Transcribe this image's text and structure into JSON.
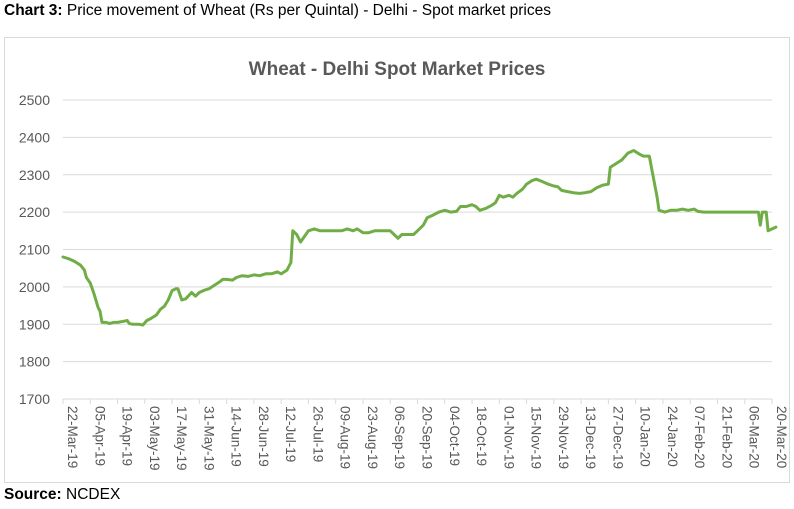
{
  "caption": {
    "label": "Chart 3:",
    "text": " Price movement of Wheat (Rs per Quintal) - Delhi - Spot market prices"
  },
  "source": {
    "label": "Source:",
    "text": " NCDEX"
  },
  "colors": {
    "line": "#70ad47",
    "grid": "#d9d9d9",
    "text": "#595959"
  },
  "chart_data": {
    "type": "line",
    "title": "Wheat - Delhi Spot Market Prices",
    "xlabel": "",
    "ylabel": "",
    "ylim": [
      1700,
      2500
    ],
    "yticks": [
      1700,
      1800,
      1900,
      2000,
      2100,
      2200,
      2300,
      2400,
      2500
    ],
    "grid": true,
    "legend": "none",
    "x_ticks": [
      "22-Mar-19",
      "05-Apr-19",
      "19-Apr-19",
      "03-May-19",
      "17-May-19",
      "31-May-19",
      "14-Jun-19",
      "28-Jun-19",
      "12-Jul-19",
      "26-Jul-19",
      "09-Aug-19",
      "23-Aug-19",
      "06-Sep-19",
      "20-Sep-19",
      "04-Oct-19",
      "18-Oct-19",
      "01-Nov-19",
      "15-Nov-19",
      "29-Nov-19",
      "13-Dec-19",
      "27-Dec-19",
      "10-Jan-20",
      "24-Jan-20",
      "07-Feb-20",
      "21-Feb-20",
      "06-Mar-20",
      "20-Mar-20"
    ],
    "series": [
      {
        "points": [
          [
            "22-Mar-19",
            2080
          ],
          [
            "25-Mar-19",
            2075
          ],
          [
            "28-Mar-19",
            2068
          ],
          [
            "31-Mar-19",
            2058
          ],
          [
            "02-Apr-19",
            2045
          ],
          [
            "03-Apr-19",
            2025
          ],
          [
            "05-Apr-19",
            2010
          ],
          [
            "07-Apr-19",
            1980
          ],
          [
            "09-Apr-19",
            1945
          ],
          [
            "10-Apr-19",
            1935
          ],
          [
            "11-Apr-19",
            1905
          ],
          [
            "13-Apr-19",
            1905
          ],
          [
            "15-Apr-19",
            1902
          ],
          [
            "17-Apr-19",
            1905
          ],
          [
            "19-Apr-19",
            1905
          ],
          [
            "22-Apr-19",
            1908
          ],
          [
            "24-Apr-19",
            1910
          ],
          [
            "25-Apr-19",
            1902
          ],
          [
            "27-Apr-19",
            1900
          ],
          [
            "30-Apr-19",
            1900
          ],
          [
            "02-May-19",
            1898
          ],
          [
            "04-May-19",
            1910
          ],
          [
            "06-May-19",
            1915
          ],
          [
            "09-May-19",
            1925
          ],
          [
            "11-May-19",
            1940
          ],
          [
            "13-May-19",
            1948
          ],
          [
            "15-May-19",
            1965
          ],
          [
            "17-May-19",
            1990
          ],
          [
            "19-May-19",
            1995
          ],
          [
            "20-May-19",
            1995
          ],
          [
            "22-May-19",
            1965
          ],
          [
            "24-May-19",
            1968
          ],
          [
            "27-May-19",
            1985
          ],
          [
            "29-May-19",
            1975
          ],
          [
            "31-May-19",
            1985
          ],
          [
            "03-Jun-19",
            1992
          ],
          [
            "05-Jun-19",
            1995
          ],
          [
            "07-Jun-19",
            2002
          ],
          [
            "10-Jun-19",
            2012
          ],
          [
            "12-Jun-19",
            2020
          ],
          [
            "14-Jun-19",
            2020
          ],
          [
            "17-Jun-19",
            2018
          ],
          [
            "19-Jun-19",
            2025
          ],
          [
            "22-Jun-19",
            2030
          ],
          [
            "25-Jun-19",
            2028
          ],
          [
            "28-Jun-19",
            2032
          ],
          [
            "01-Jul-19",
            2030
          ],
          [
            "04-Jul-19",
            2035
          ],
          [
            "07-Jul-19",
            2035
          ],
          [
            "10-Jul-19",
            2040
          ],
          [
            "12-Jul-19",
            2035
          ],
          [
            "15-Jul-19",
            2045
          ],
          [
            "17-Jul-19",
            2065
          ],
          [
            "18-Jul-19",
            2150
          ],
          [
            "20-Jul-19",
            2140
          ],
          [
            "22-Jul-19",
            2120
          ],
          [
            "24-Jul-19",
            2135
          ],
          [
            "26-Jul-19",
            2150
          ],
          [
            "29-Jul-19",
            2155
          ],
          [
            "01-Aug-19",
            2150
          ],
          [
            "04-Aug-19",
            2150
          ],
          [
            "07-Aug-19",
            2150
          ],
          [
            "09-Aug-19",
            2150
          ],
          [
            "12-Aug-19",
            2150
          ],
          [
            "15-Aug-19",
            2155
          ],
          [
            "18-Aug-19",
            2150
          ],
          [
            "20-Aug-19",
            2155
          ],
          [
            "23-Aug-19",
            2145
          ],
          [
            "26-Aug-19",
            2145
          ],
          [
            "29-Aug-19",
            2150
          ],
          [
            "01-Sep-19",
            2150
          ],
          [
            "04-Sep-19",
            2150
          ],
          [
            "06-Sep-19",
            2150
          ],
          [
            "08-Sep-19",
            2140
          ],
          [
            "10-Sep-19",
            2130
          ],
          [
            "12-Sep-19",
            2140
          ],
          [
            "15-Sep-19",
            2140
          ],
          [
            "18-Sep-19",
            2140
          ],
          [
            "20-Sep-19",
            2150
          ],
          [
            "23-Sep-19",
            2165
          ],
          [
            "25-Sep-19",
            2185
          ],
          [
            "28-Sep-19",
            2192
          ],
          [
            "01-Oct-19",
            2200
          ],
          [
            "04-Oct-19",
            2205
          ],
          [
            "07-Oct-19",
            2200
          ],
          [
            "10-Oct-19",
            2202
          ],
          [
            "12-Oct-19",
            2215
          ],
          [
            "15-Oct-19",
            2215
          ],
          [
            "18-Oct-19",
            2220
          ],
          [
            "20-Oct-19",
            2215
          ],
          [
            "22-Oct-19",
            2205
          ],
          [
            "25-Oct-19",
            2210
          ],
          [
            "28-Oct-19",
            2218
          ],
          [
            "30-Oct-19",
            2225
          ],
          [
            "01-Nov-19",
            2245
          ],
          [
            "03-Nov-19",
            2240
          ],
          [
            "06-Nov-19",
            2245
          ],
          [
            "08-Nov-19",
            2240
          ],
          [
            "10-Nov-19",
            2250
          ],
          [
            "13-Nov-19",
            2262
          ],
          [
            "15-Nov-19",
            2275
          ],
          [
            "18-Nov-19",
            2285
          ],
          [
            "20-Nov-19",
            2288
          ],
          [
            "23-Nov-19",
            2282
          ],
          [
            "26-Nov-19",
            2275
          ],
          [
            "29-Nov-19",
            2270
          ],
          [
            "01-Dec-19",
            2268
          ],
          [
            "03-Dec-19",
            2258
          ],
          [
            "06-Dec-19",
            2255
          ],
          [
            "09-Dec-19",
            2252
          ],
          [
            "12-Dec-19",
            2250
          ],
          [
            "15-Dec-19",
            2252
          ],
          [
            "18-Dec-19",
            2255
          ],
          [
            "21-Dec-19",
            2265
          ],
          [
            "24-Dec-19",
            2272
          ],
          [
            "27-Dec-19",
            2275
          ],
          [
            "28-Dec-19",
            2320
          ],
          [
            "31-Dec-19",
            2330
          ],
          [
            "03-Jan-20",
            2340
          ],
          [
            "06-Jan-20",
            2358
          ],
          [
            "09-Jan-20",
            2365
          ],
          [
            "12-Jan-20",
            2355
          ],
          [
            "14-Jan-20",
            2350
          ],
          [
            "17-Jan-20",
            2350
          ],
          [
            "19-Jan-20",
            2295
          ],
          [
            "21-Jan-20",
            2240
          ],
          [
            "22-Jan-20",
            2205
          ],
          [
            "25-Jan-20",
            2200
          ],
          [
            "28-Jan-20",
            2205
          ],
          [
            "31-Jan-20",
            2205
          ],
          [
            "03-Feb-20",
            2208
          ],
          [
            "06-Feb-20",
            2205
          ],
          [
            "09-Feb-20",
            2208
          ],
          [
            "11-Feb-20",
            2202
          ],
          [
            "14-Feb-20",
            2200
          ],
          [
            "17-Feb-20",
            2200
          ],
          [
            "20-Feb-20",
            2200
          ],
          [
            "23-Feb-20",
            2200
          ],
          [
            "26-Feb-20",
            2200
          ],
          [
            "29-Feb-20",
            2200
          ],
          [
            "03-Mar-20",
            2200
          ],
          [
            "06-Mar-20",
            2200
          ],
          [
            "10-Mar-20",
            2200
          ],
          [
            "13-Mar-20",
            2200
          ],
          [
            "14-Mar-20",
            2165
          ],
          [
            "15-Mar-20",
            2200
          ],
          [
            "16-Mar-20",
            2200
          ],
          [
            "17-Mar-20",
            2200
          ],
          [
            "18-Mar-20",
            2150
          ],
          [
            "20-Mar-20",
            2155
          ],
          [
            "22-Mar-20",
            2160
          ]
        ]
      }
    ]
  }
}
